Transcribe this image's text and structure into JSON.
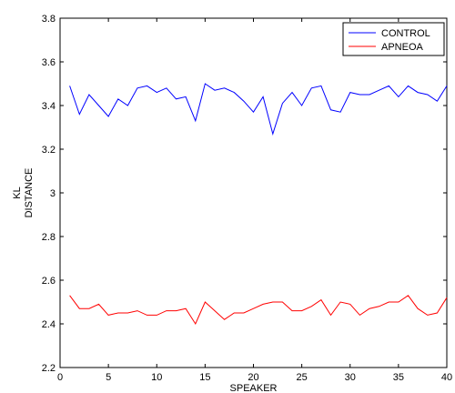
{
  "chart_data": {
    "type": "line",
    "title": "",
    "xlabel": "SPEAKER",
    "ylabel_lines": [
      "KL",
      "DISTANCE"
    ],
    "xlim": [
      0,
      40
    ],
    "ylim": [
      2.2,
      3.8
    ],
    "xticks": [
      0,
      5,
      10,
      15,
      20,
      25,
      30,
      35,
      40
    ],
    "yticks": [
      2.2,
      2.4,
      2.6,
      2.8,
      3,
      3.2,
      3.4,
      3.6,
      3.8
    ],
    "xtick_labels": [
      "0",
      "5",
      "10",
      "15",
      "20",
      "25",
      "30",
      "35",
      "40"
    ],
    "ytick_labels": [
      "2.2",
      "2.4",
      "2.6",
      "2.8",
      "3",
      "3.2",
      "3.4",
      "3.6",
      "3.8"
    ],
    "grid": false,
    "legend_position": "top-right",
    "x": [
      1,
      2,
      3,
      4,
      5,
      6,
      7,
      8,
      9,
      10,
      11,
      12,
      13,
      14,
      15,
      16,
      17,
      18,
      19,
      20,
      21,
      22,
      23,
      24,
      25,
      26,
      27,
      28,
      29,
      30,
      31,
      32,
      33,
      34,
      35,
      36,
      37,
      38,
      39,
      40
    ],
    "series": [
      {
        "name": "CONTROL",
        "color": "#0000ff",
        "values": [
          3.49,
          3.36,
          3.45,
          3.4,
          3.35,
          3.43,
          3.4,
          3.48,
          3.49,
          3.46,
          3.48,
          3.43,
          3.44,
          3.33,
          3.5,
          3.47,
          3.48,
          3.46,
          3.42,
          3.37,
          3.44,
          3.27,
          3.41,
          3.46,
          3.4,
          3.48,
          3.49,
          3.38,
          3.37,
          3.46,
          3.45,
          3.45,
          3.47,
          3.49,
          3.44,
          3.49,
          3.46,
          3.45,
          3.42,
          3.49
        ]
      },
      {
        "name": "APNEOA",
        "color": "#ff0000",
        "values": [
          2.53,
          2.47,
          2.47,
          2.49,
          2.44,
          2.45,
          2.45,
          2.46,
          2.44,
          2.44,
          2.46,
          2.46,
          2.47,
          2.4,
          2.5,
          2.46,
          2.42,
          2.45,
          2.45,
          2.47,
          2.49,
          2.5,
          2.5,
          2.46,
          2.46,
          2.48,
          2.51,
          2.44,
          2.5,
          2.49,
          2.44,
          2.47,
          2.48,
          2.5,
          2.5,
          2.53,
          2.47,
          2.44,
          2.45,
          2.52
        ]
      }
    ]
  }
}
